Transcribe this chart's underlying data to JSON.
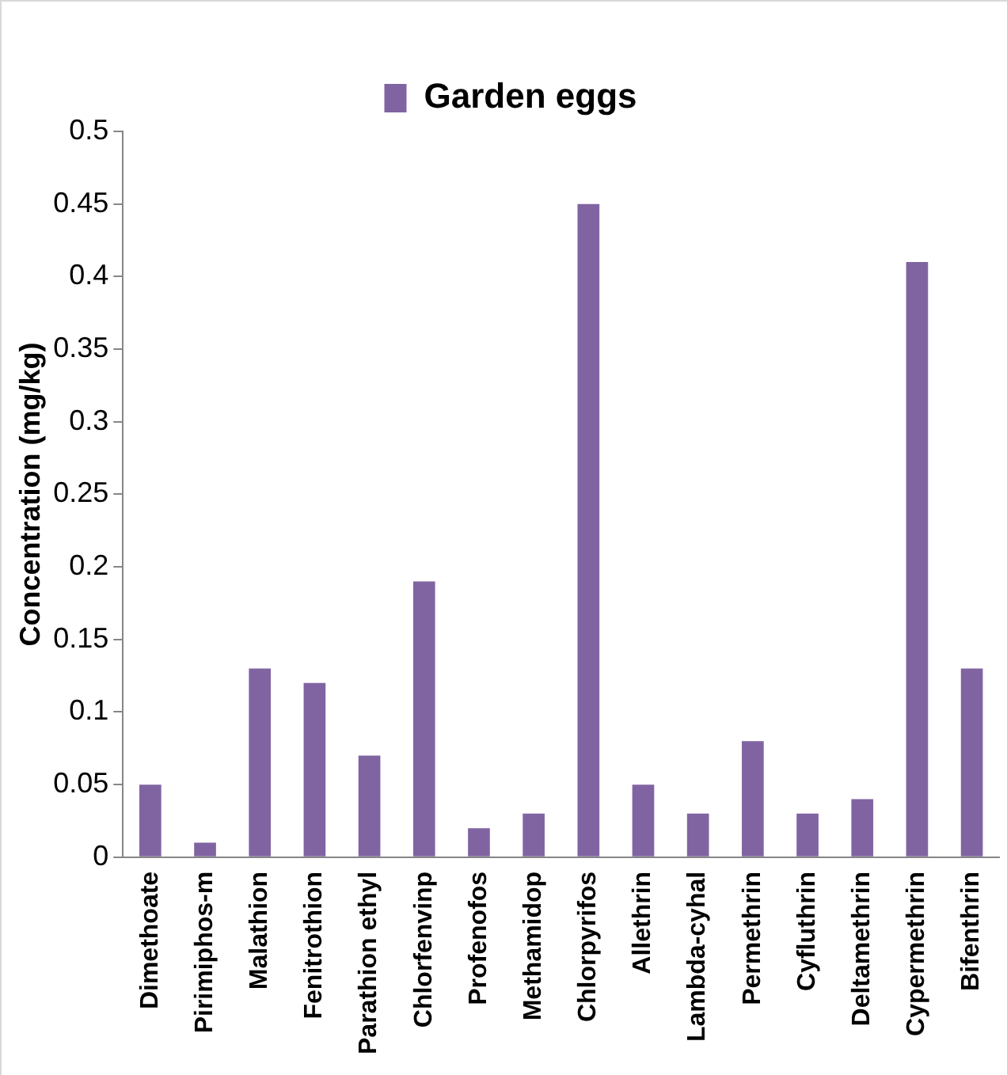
{
  "chart_data": {
    "type": "bar",
    "ylabel": "Concentration (mg/kg)",
    "categories": [
      "Dimethoate",
      "Pirimiphos-m",
      "Malathion",
      "Fenitrothion",
      "Parathion ethyl",
      "Chlorfenvinp",
      "Profenofos",
      "Methamidop",
      "Chlorpyrifos",
      "Allethrin",
      "Lambda-cyhal",
      "Permethrin",
      "Cyfluthrin",
      "Deltamethrin",
      "Cypermethrin",
      "Bifenthrin"
    ],
    "series": [
      {
        "name": "Garden eggs",
        "color": "#8064a2",
        "values": [
          0.05,
          0.01,
          0.13,
          0.12,
          0.07,
          0.19,
          0.02,
          0.03,
          0.45,
          0.05,
          0.03,
          0.08,
          0.03,
          0.04,
          0.41,
          0.13
        ]
      }
    ],
    "ylim": [
      0,
      0.5
    ],
    "yticks": [
      0,
      0.05,
      0.1,
      0.15,
      0.2,
      0.25,
      0.3,
      0.35,
      0.4,
      0.45,
      0.5
    ],
    "grid": false,
    "legend": "top"
  }
}
